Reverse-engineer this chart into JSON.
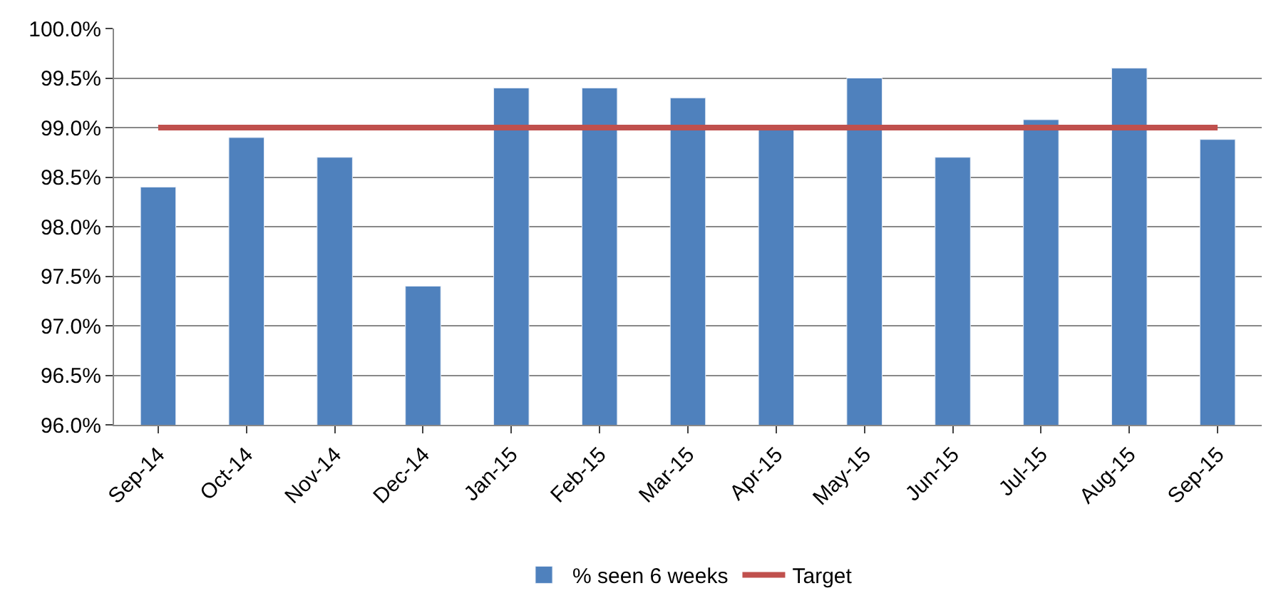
{
  "chart_data": {
    "type": "bar",
    "categories": [
      "Sep-14",
      "Oct-14",
      "Nov-14",
      "Dec-14",
      "Jan-15",
      "Feb-15",
      "Mar-15",
      "Apr-15",
      "May-15",
      "Jun-15",
      "Jul-15",
      "Aug-15",
      "Sep-15"
    ],
    "series": [
      {
        "name": "% seen 6 weeks",
        "color": "#4f81bd",
        "values": [
          98.4,
          98.9,
          98.7,
          97.4,
          99.4,
          99.4,
          99.3,
          99.0,
          99.5,
          98.7,
          99.08,
          99.6,
          98.88
        ]
      },
      {
        "name": "Target",
        "type": "line",
        "color": "#c0504d",
        "values": [
          99,
          99,
          99,
          99,
          99,
          99,
          99,
          99,
          99,
          99,
          99,
          99,
          99
        ]
      }
    ],
    "ylim": [
      96,
      100
    ],
    "yticks": [
      {
        "value": 96,
        "label": "96.0%"
      },
      {
        "value": 96.5,
        "label": "96.5%"
      },
      {
        "value": 97,
        "label": "97.0%"
      },
      {
        "value": 97.5,
        "label": "97.5%"
      },
      {
        "value": 98,
        "label": "98.0%"
      },
      {
        "value": 98.5,
        "label": "98.5%"
      },
      {
        "value": 99,
        "label": "99.0%"
      },
      {
        "value": 99.5,
        "label": "99.5%"
      },
      {
        "value": 100,
        "label": "100.0%"
      }
    ],
    "grid": "y",
    "legend": "bottom",
    "marker": "none"
  }
}
